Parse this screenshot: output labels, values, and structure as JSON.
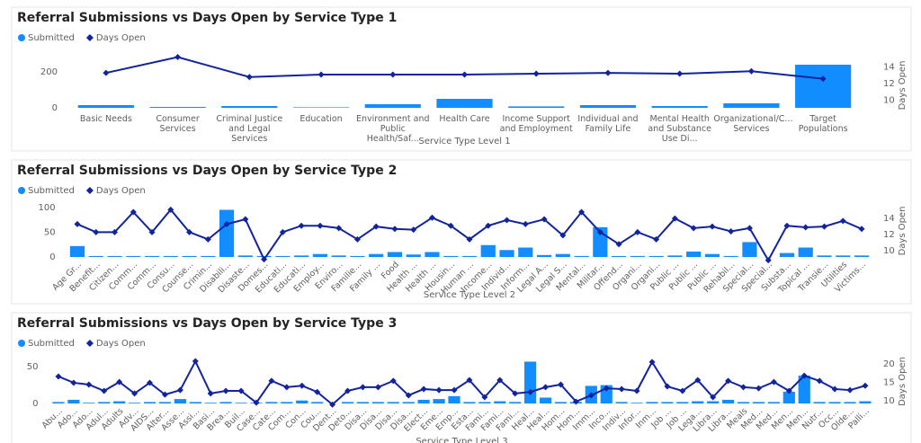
{
  "chart_data": [
    {
      "type": "bar_line",
      "title": "Referral Submissions vs Days Open by Service Type 1",
      "x_label": "Service Type Level 1",
      "y2_label": "Days Open",
      "legend": "top-left",
      "categories": [
        "Basic Needs",
        "Consumer Services",
        "Criminal Justice and Legal Services",
        "Education",
        "Environment and Public Health/Saf...",
        "Health Care",
        "Income Support and Employment",
        "Individual and Family Life",
        "Mental Health and Substance Use Di...",
        "Organizational/C... Services",
        "Target Populations"
      ],
      "series": [
        {
          "name": "Submitted",
          "type": "bar",
          "color": "#118dff",
          "values": [
            15,
            5,
            10,
            3,
            20,
            50,
            8,
            15,
            10,
            25,
            240
          ]
        },
        {
          "name": "Days Open",
          "type": "line",
          "axis": "y2",
          "color": "#12239e",
          "values": [
            13.3,
            15.2,
            12.8,
            13.1,
            13.1,
            13.1,
            13.2,
            13.3,
            13.2,
            13.5,
            12.6
          ]
        }
      ],
      "ylim": [
        0,
        250
      ],
      "yticks": [
        0,
        200
      ],
      "y2lim": [
        9.1,
        14.5
      ],
      "y2ticks": [
        10,
        12,
        14
      ]
    },
    {
      "type": "bar_line",
      "title": "Referral Submissions vs Days Open by Service Type 2",
      "x_label": "Service Type Level 2",
      "y2_label": "Days Open",
      "legend": "top-left",
      "categories": [
        "Age Gr...",
        "Benefit...",
        "Citizen...",
        "Comm...",
        "Comm...",
        "Consu...",
        "Counse...",
        "Crimin...",
        "Disabili...",
        "Disaste...",
        "Domes...",
        "Educati...",
        "Educati...",
        "Employ...",
        "Enviro...",
        "Familie...",
        "Family ...",
        "Food",
        "Health ...",
        "Health ...",
        "Housin...",
        "Human ...",
        "Income...",
        "Individ...",
        "Inform...",
        "Legal A...",
        "Legal S...",
        "Mental...",
        "Militar...",
        "Offend...",
        "Organi...",
        "Organi...",
        "Public ...",
        "Public ...",
        "Public ...",
        "Rehabil...",
        "Special...",
        "Special...",
        "Substa...",
        "Topical ...",
        "Transie...",
        "Utilities",
        "Victims..."
      ],
      "series": [
        {
          "name": "Submitted",
          "type": "bar",
          "color": "#118dff",
          "values": [
            22,
            2,
            2,
            2,
            2,
            2,
            2,
            2,
            95,
            3,
            2,
            2,
            3,
            6,
            3,
            2,
            6,
            10,
            5,
            10,
            2,
            2,
            24,
            14,
            19,
            4,
            6,
            2,
            60,
            2,
            2,
            2,
            3,
            11,
            6,
            2,
            30,
            0,
            8,
            19,
            3,
            3,
            3
          ]
        },
        {
          "name": "Days Open",
          "type": "line",
          "axis": "y2",
          "color": "#12239e",
          "values": [
            13.3,
            12.3,
            12.3,
            14.8,
            12.3,
            15.1,
            12.3,
            11.4,
            13.3,
            13.9,
            8.9,
            12.3,
            13.1,
            13.1,
            12.8,
            11.4,
            13.0,
            12.7,
            12.6,
            14.1,
            13.1,
            11.4,
            13.1,
            13.8,
            13.3,
            13.9,
            11.9,
            14.8,
            12.3,
            10.8,
            12.3,
            11.4,
            14.0,
            12.8,
            13.0,
            12.4,
            12.8,
            8.8,
            13.1,
            12.9,
            13.0,
            13.7,
            12.7
          ]
        }
      ],
      "ylim": [
        0,
        105
      ],
      "yticks": [
        0,
        50,
        100
      ],
      "y2lim": [
        9.2,
        15.7
      ],
      "y2ticks": [
        10,
        12,
        14
      ]
    },
    {
      "type": "bar_line",
      "title": "Referral Submissions vs Days Open by Service Type 3",
      "x_label": "Service Type Level 3",
      "y2_label": "Days Open",
      "legend": "top-left",
      "categories": [
        "Abu...",
        "Ado...",
        "Ado...",
        "Adul...",
        "Adults",
        "Adv...",
        "AIDS...",
        "Alter...",
        "Asse...",
        "Assi...",
        "Basi...",
        "Brea...",
        "Buil...",
        "Case...",
        "Cate...",
        "Com...",
        "Con...",
        "Cou...",
        "Dent...",
        "Deto...",
        "Disa...",
        "Disa...",
        "Disa...",
        "Disa...",
        "Elect...",
        "Eme...",
        "Emp...",
        "Esta...",
        "Fami...",
        "Fami...",
        "Fami...",
        "Heal...",
        "Heal...",
        "Hom...",
        "Hom...",
        "Imm...",
        "Inco...",
        "Indiv...",
        "Infor...",
        "Inm...",
        "Job ...",
        "Job ...",
        "Lega...",
        "Libra...",
        "Libra...",
        "Meals",
        "Med...",
        "Med...",
        "Men...",
        "Men...",
        "Nutr...",
        "Occ...",
        "Olde...",
        "Palli..."
      ],
      "series": [
        {
          "name": "Submitted",
          "type": "bar",
          "color": "#118dff",
          "values": [
            2,
            5,
            1,
            2,
            3,
            1,
            2,
            2,
            6,
            2,
            1,
            2,
            1,
            1,
            2,
            2,
            4,
            2,
            0,
            2,
            2,
            2,
            2,
            2,
            5,
            6,
            10,
            2,
            2,
            3,
            2,
            57,
            8,
            2,
            2,
            24,
            25,
            2,
            1,
            2,
            2,
            2,
            3,
            3,
            5,
            2,
            2,
            2,
            16,
            38,
            2,
            2,
            2,
            3
          ]
        },
        {
          "name": "Days Open",
          "type": "line",
          "axis": "y2",
          "color": "#12239e",
          "values": [
            16.6,
            14.9,
            14.4,
            12.7,
            15.1,
            12.0,
            14.9,
            11.7,
            12.9,
            20.7,
            12.0,
            12.7,
            12.7,
            9.5,
            15.4,
            13.7,
            14.1,
            12.4,
            9.0,
            12.7,
            13.7,
            13.7,
            15.4,
            11.5,
            13.2,
            12.9,
            12.9,
            15.6,
            11.0,
            15.6,
            12.0,
            12.4,
            13.7,
            14.4,
            9.8,
            11.5,
            13.4,
            13.2,
            12.7,
            20.5,
            13.9,
            12.7,
            15.6,
            11.0,
            15.4,
            13.7,
            13.4,
            15.1,
            12.7,
            16.8,
            15.4,
            13.2,
            12.9,
            14.1
          ]
        }
      ],
      "ylim": [
        0,
        60
      ],
      "yticks": [
        0,
        50
      ],
      "y2lim": [
        9.3,
        21.2
      ],
      "y2ticks": [
        10,
        15,
        20
      ]
    }
  ]
}
